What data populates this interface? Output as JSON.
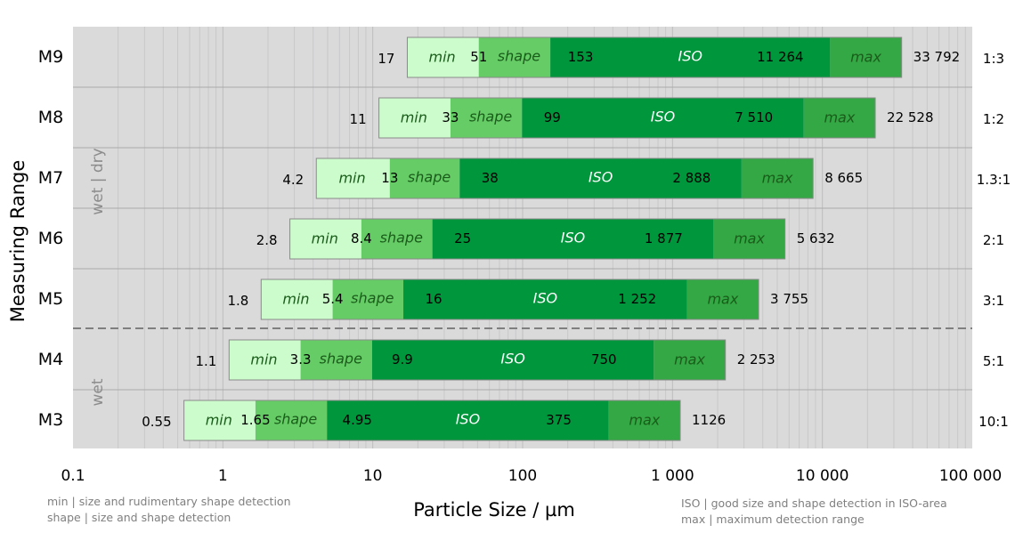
{
  "chart_data": {
    "type": "bar",
    "orientation": "horizontal",
    "stacked": true,
    "x_scale": "log",
    "xlim": [
      0.1,
      100000
    ],
    "xlabel": "Particle Size / µm",
    "ylabel": "Measuring Range",
    "x_tick_labels": [
      "0.1",
      "1",
      "10",
      "100",
      "1 000",
      "10 000",
      "100 000"
    ],
    "x_tick_values": [
      0.1,
      1,
      10,
      100,
      1000,
      10000,
      100000
    ],
    "grid": true,
    "segment_labels": {
      "min": "min",
      "shape": "shape",
      "iso": "ISO",
      "max": "max"
    },
    "colors": {
      "min": "#ccfccc",
      "shape": "#66cc66",
      "iso": "#00963c",
      "max": "#33a844",
      "plot_bg": "#dadadb",
      "divider": "#7f7f7f",
      "label_dim": "#8c8c8c"
    },
    "group_labels": {
      "upper": "wet | dry",
      "lower": "wet"
    },
    "rows": [
      {
        "name": "M9",
        "min_start": 17,
        "min_start_label": "17",
        "shape_start": 51,
        "shape_start_label": "51",
        "iso_start": 153,
        "iso_start_label": "153",
        "iso_end": 11264,
        "iso_end_label": "11 264",
        "max_end": 33792,
        "max_end_label": "33 792",
        "ratio": "1:3"
      },
      {
        "name": "M8",
        "min_start": 11,
        "min_start_label": "11",
        "shape_start": 33,
        "shape_start_label": "33",
        "iso_start": 99,
        "iso_start_label": "99",
        "iso_end": 7510,
        "iso_end_label": "7 510",
        "max_end": 22528,
        "max_end_label": "22 528",
        "ratio": "1:2"
      },
      {
        "name": "M7",
        "min_start": 4.2,
        "min_start_label": "4.2",
        "shape_start": 13,
        "shape_start_label": "13",
        "iso_start": 38,
        "iso_start_label": "38",
        "iso_end": 2888,
        "iso_end_label": "2 888",
        "max_end": 8665,
        "max_end_label": "8 665",
        "ratio": "1.3:1"
      },
      {
        "name": "M6",
        "min_start": 2.8,
        "min_start_label": "2.8",
        "shape_start": 8.4,
        "shape_start_label": "8.4",
        "iso_start": 25,
        "iso_start_label": "25",
        "iso_end": 1877,
        "iso_end_label": "1 877",
        "max_end": 5632,
        "max_end_label": "5 632",
        "ratio": "2:1"
      },
      {
        "name": "M5",
        "min_start": 1.8,
        "min_start_label": "1.8",
        "shape_start": 5.4,
        "shape_start_label": "5.4",
        "iso_start": 16,
        "iso_start_label": "16",
        "iso_end": 1252,
        "iso_end_label": "1 252",
        "max_end": 3755,
        "max_end_label": "3 755",
        "ratio": "3:1"
      },
      {
        "name": "M4",
        "min_start": 1.1,
        "min_start_label": "1.1",
        "shape_start": 3.3,
        "shape_start_label": "3.3",
        "iso_start": 9.9,
        "iso_start_label": "9.9",
        "iso_end": 750,
        "iso_end_label": "750",
        "max_end": 2253,
        "max_end_label": "2 253",
        "ratio": "5:1"
      },
      {
        "name": "M3",
        "min_start": 0.55,
        "min_start_label": "0.55",
        "shape_start": 1.65,
        "shape_start_label": "1.65",
        "iso_start": 4.95,
        "iso_start_label": "4.95",
        "iso_end": 375,
        "iso_end_label": "375",
        "max_end": 1126,
        "max_end_label": "1126",
        "ratio": "10:1"
      }
    ]
  },
  "notes": {
    "left_line1": "min | size and rudimentary shape detection",
    "left_line2": "shape | size and shape detection",
    "right_line1": "ISO | good size and shape detection in ISO-area",
    "right_line2": "max | maximum detection range"
  }
}
